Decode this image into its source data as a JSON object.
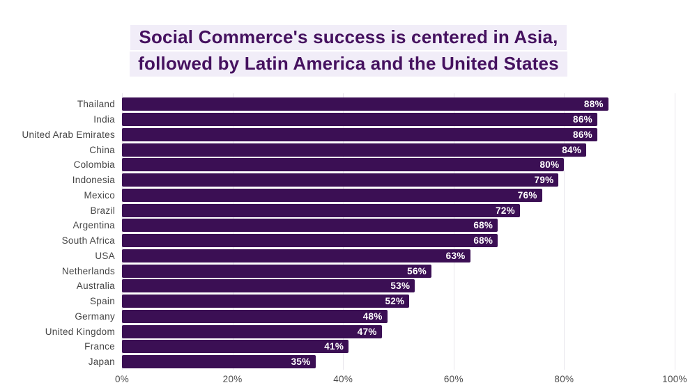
{
  "title": {
    "line1": "Social Commerce's success is centered in Asia,",
    "line2": "followed by Latin America and the United States"
  },
  "chart_data": {
    "type": "bar",
    "orientation": "horizontal",
    "title": "Social Commerce's success is centered in Asia, followed by Latin America and the United States",
    "categories": [
      "Thailand",
      "India",
      "United Arab Emirates",
      "China",
      "Colombia",
      "Indonesia",
      "Mexico",
      "Brazil",
      "Argentina",
      "South Africa",
      "USA",
      "Netherlands",
      "Australia",
      "Spain",
      "Germany",
      "United Kingdom",
      "France",
      "Japan"
    ],
    "values": [
      88,
      86,
      86,
      84,
      80,
      79,
      76,
      72,
      68,
      68,
      63,
      56,
      53,
      52,
      48,
      47,
      41,
      35
    ],
    "value_suffix": "%",
    "xlabel": "",
    "ylabel": "",
    "xlim": [
      0,
      100
    ],
    "x_ticks": [
      "0%",
      "20%",
      "40%",
      "60%",
      "80%",
      "100%"
    ],
    "grid": true,
    "legend": "none",
    "value_labels_position": "inside-end"
  },
  "colors": {
    "bar": "#3b0f54",
    "title_text": "#45115f",
    "title_highlight": "#f1edf8",
    "gridline": "#e8e6ec",
    "category_label": "#454545",
    "axis_label": "#4d4d4d",
    "value_label": "#ffffff",
    "background": "#ffffff"
  }
}
